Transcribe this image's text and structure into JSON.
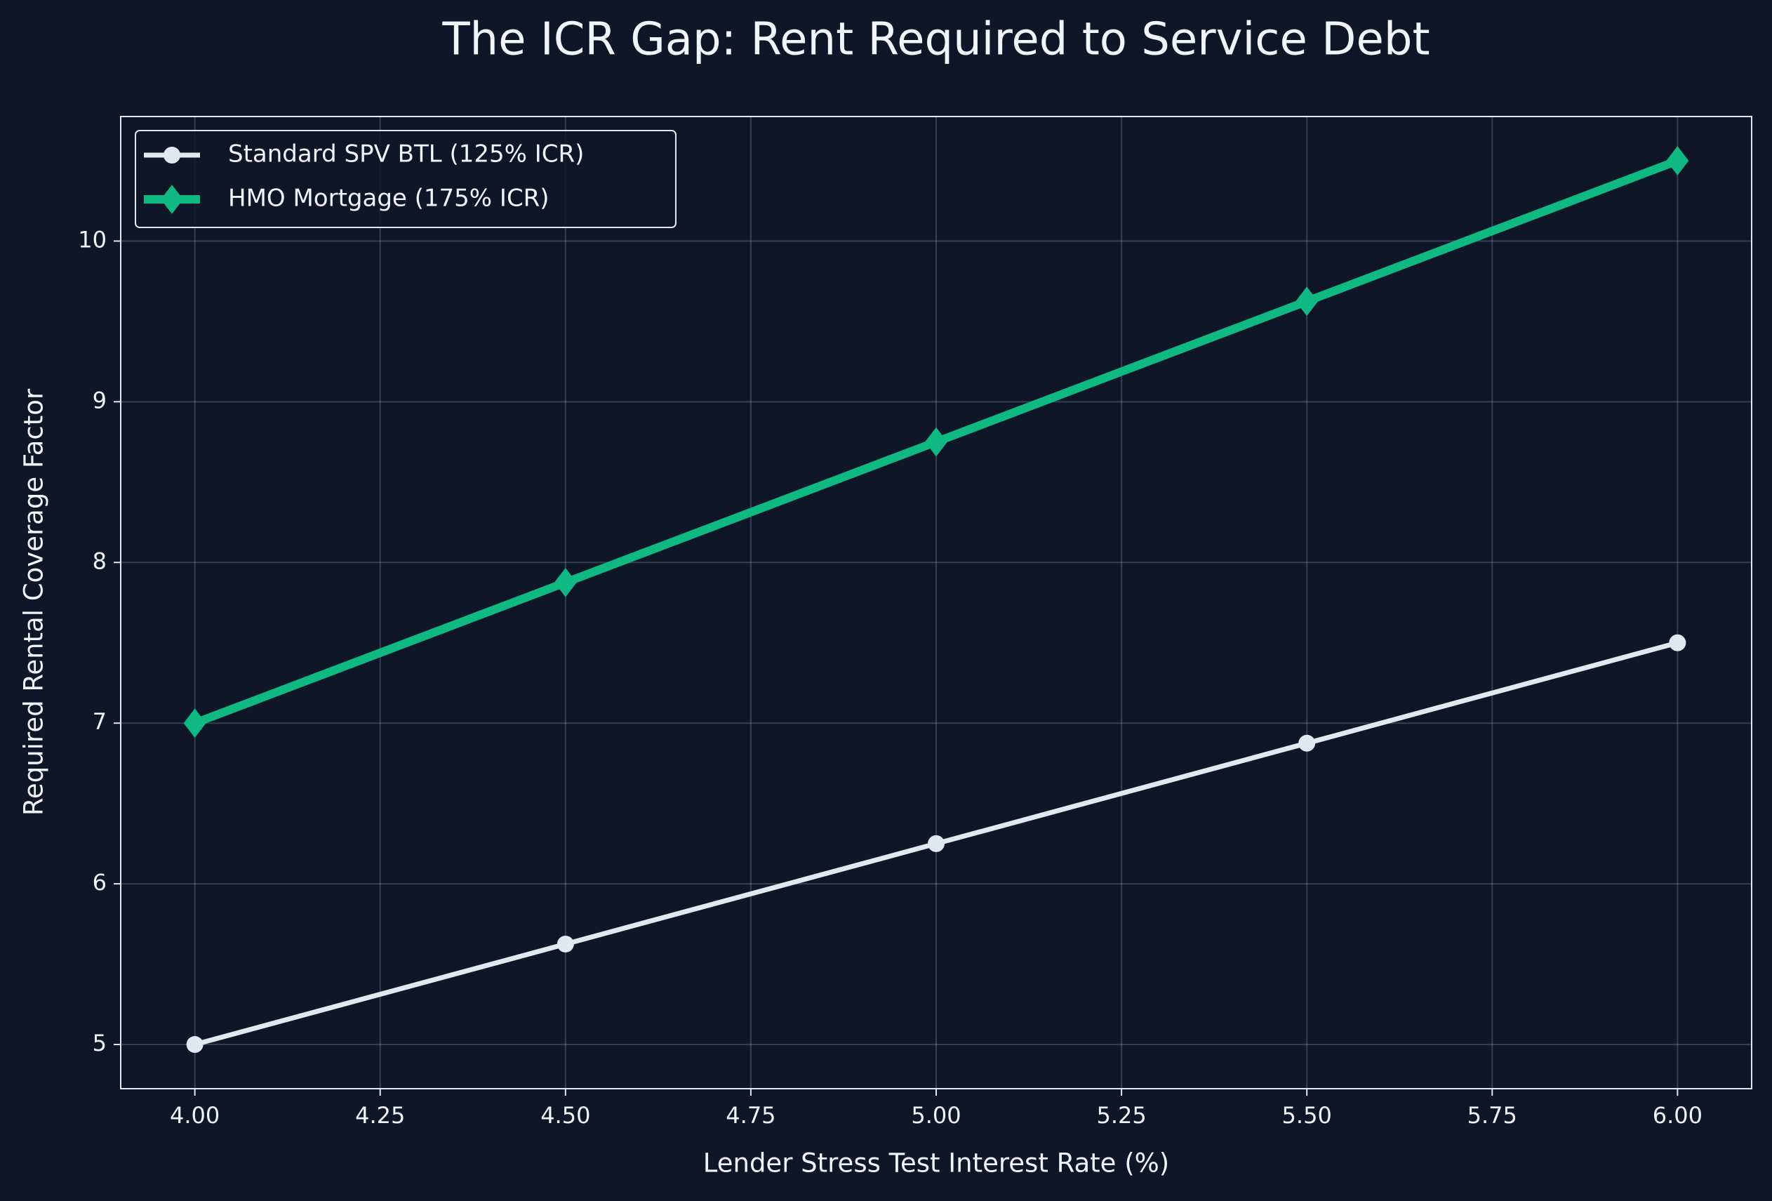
{
  "chart_data": {
    "type": "line",
    "title": "The ICR Gap: Rent Required to Service Debt",
    "x_label": "Lender Stress Test Interest Rate (%)",
    "y_label": "Required Rental Coverage Factor",
    "x": [
      4.0,
      4.5,
      5.0,
      5.5,
      6.0
    ],
    "series": [
      {
        "name": "Standard SPV BTL (125% ICR)",
        "color": "#e2e8f0",
        "marker": "circle",
        "values": [
          5,
          5.625,
          6.25,
          6.875,
          7.5
        ]
      },
      {
        "name": "HMO Mortgage (175% ICR)",
        "color": "#10b981",
        "marker": "diamond",
        "values": [
          7,
          7.875,
          8.75,
          9.625,
          10.5
        ]
      }
    ],
    "xlim": [
      3.9,
      6.1
    ],
    "xticks": [
      {
        "value": 4.0,
        "label": "4.00"
      },
      {
        "value": 4.25,
        "label": "4.25"
      },
      {
        "value": 4.5,
        "label": "4.50"
      },
      {
        "value": 4.75,
        "label": "4.75"
      },
      {
        "value": 5.0,
        "label": "5.00"
      },
      {
        "value": 5.25,
        "label": "5.25"
      },
      {
        "value": 5.5,
        "label": "5.50"
      },
      {
        "value": 5.75,
        "label": "5.75"
      },
      {
        "value": 6.0,
        "label": "6.00"
      }
    ],
    "ylim": [
      4.725,
      10.775
    ],
    "yticks": [
      5,
      6,
      7,
      8,
      9,
      10
    ],
    "grid": true,
    "legend": "upper left"
  }
}
